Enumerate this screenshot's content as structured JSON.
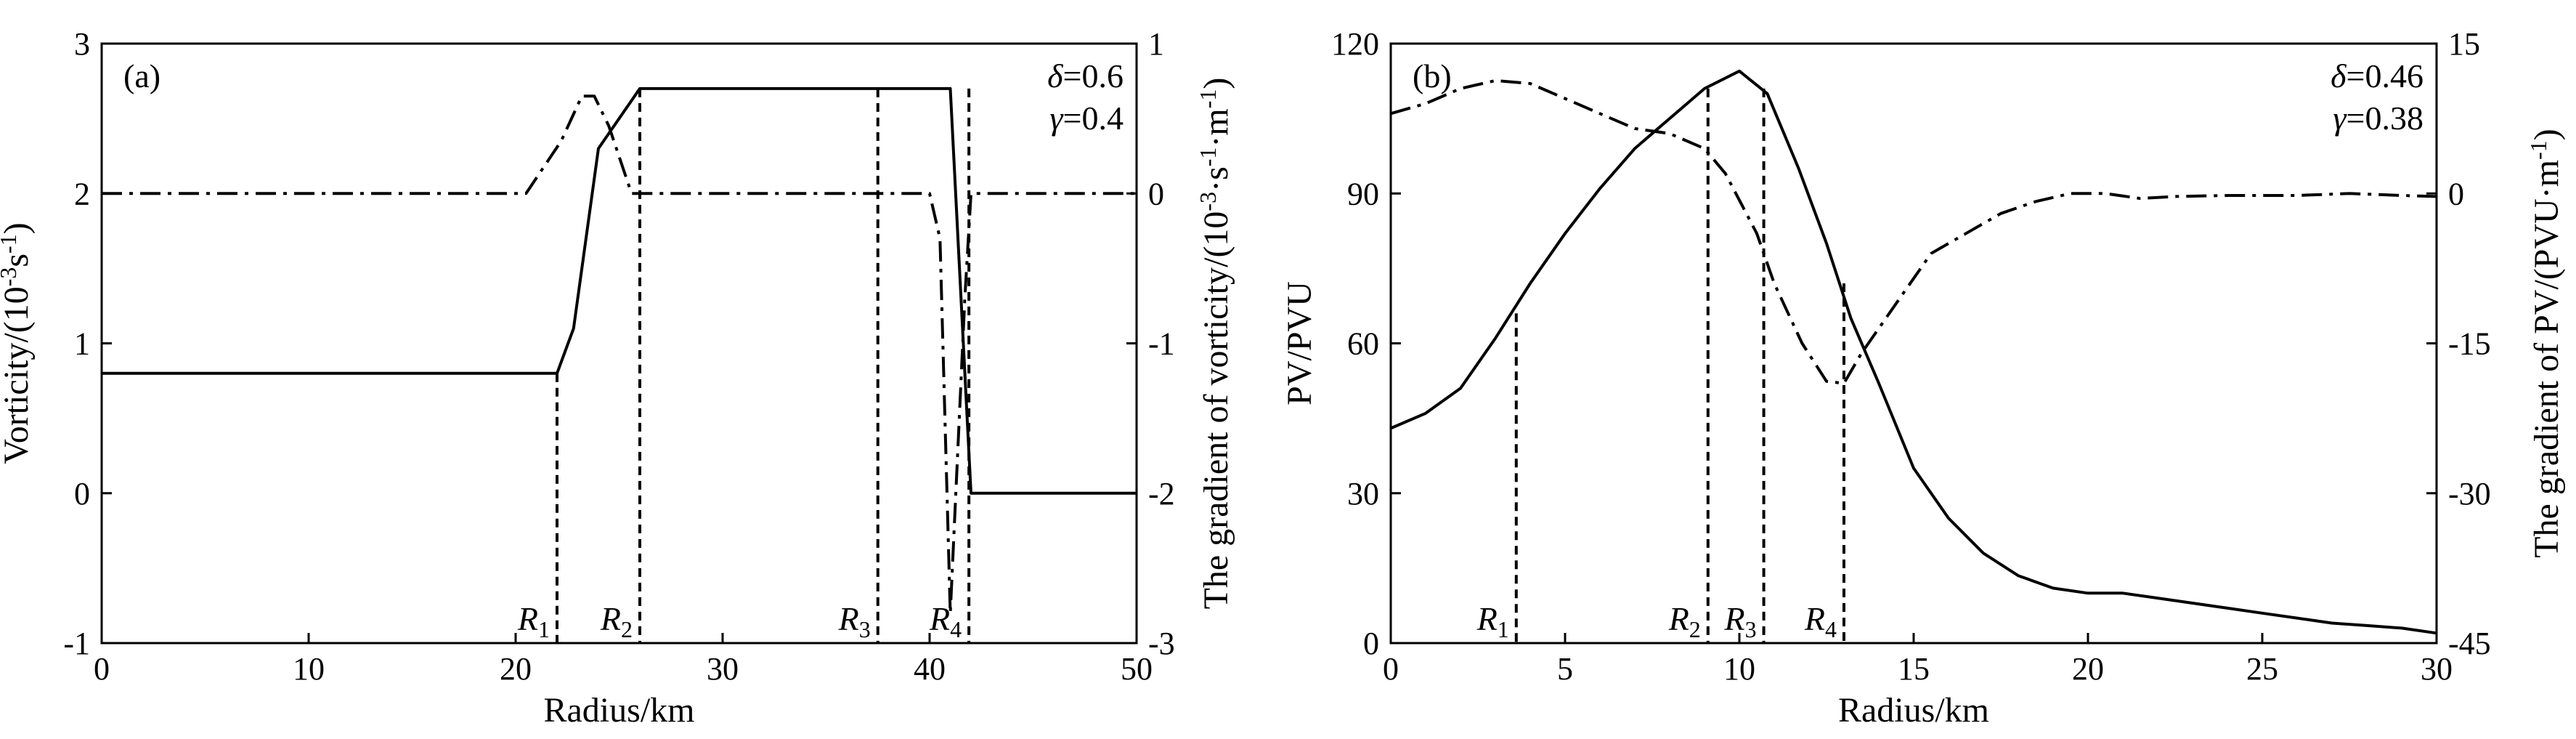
{
  "chart_data": [
    {
      "type": "line",
      "panel_label": "(a)",
      "xlabel": "Radius/km",
      "ylabel_left": {
        "text": "Vorticity/(10",
        "sup1": "-3",
        "text2": "s",
        "sup2": "-1",
        "text3": ")"
      },
      "ylabel_right": {
        "text": "The gradient of vorticity/(10",
        "sup1": "-3",
        "text2": "·s",
        "sup2": "-1",
        "text3": "·m",
        "sup3": "-1",
        "text4": ")"
      },
      "xlim": [
        0,
        50
      ],
      "ylim_left": [
        -1,
        3
      ],
      "ylim_right": [
        -3,
        1
      ],
      "xticks": [
        0,
        10,
        20,
        30,
        40,
        50
      ],
      "yticks_left": [
        -1,
        0,
        1,
        2,
        3
      ],
      "yticks_right": [
        -3,
        -2,
        -1,
        0,
        1
      ],
      "annotations": {
        "delta": "=0.6",
        "gamma": "=0.4",
        "delta_symbol": "δ",
        "gamma_symbol": "γ"
      },
      "series": [
        {
          "style": "solid",
          "axis": "left",
          "points": [
            [
              0,
              0.8
            ],
            [
              22,
              0.8
            ],
            [
              22.8,
              1.1
            ],
            [
              24,
              2.3
            ],
            [
              26,
              2.7
            ],
            [
              41,
              2.7
            ],
            [
              42,
              0
            ],
            [
              50,
              0
            ]
          ]
        },
        {
          "style": "dashdot",
          "axis": "right",
          "points": [
            [
              0,
              0
            ],
            [
              20.5,
              0
            ],
            [
              22.2,
              0.35
            ],
            [
              23.2,
              0.65
            ],
            [
              23.8,
              0.65
            ],
            [
              24.5,
              0.45
            ],
            [
              25.6,
              0
            ],
            [
              40,
              0
            ],
            [
              40.5,
              -0.3
            ],
            [
              41,
              -2.8
            ],
            [
              41.7,
              -0.7
            ],
            [
              42,
              0
            ],
            [
              50,
              0
            ]
          ]
        }
      ],
      "markers": [
        {
          "x": 22,
          "y_top": 0.8,
          "label": "R",
          "sub": "1"
        },
        {
          "x": 26,
          "y_top": 2.7,
          "label": "R",
          "sub": "2"
        },
        {
          "x": 37.5,
          "y_top": 2.7,
          "label": "R",
          "sub": "3"
        },
        {
          "x": 41.9,
          "y_top": 2.7,
          "label": "R",
          "sub": "4"
        }
      ]
    },
    {
      "type": "line",
      "panel_label": "(b)",
      "xlabel": "Radius/km",
      "ylabel_left": {
        "text": "PV/PVU"
      },
      "ylabel_right": {
        "text": "The gradient of PV/(PVU·m",
        "sup1": "-1",
        "text2": ")"
      },
      "xlim": [
        0,
        30
      ],
      "ylim_left": [
        0,
        120
      ],
      "ylim_right": [
        -45,
        15
      ],
      "xticks": [
        0,
        5,
        10,
        15,
        20,
        25,
        30
      ],
      "yticks_left": [
        0,
        30,
        60,
        90,
        120
      ],
      "yticks_right": [
        -45,
        -30,
        -15,
        0,
        15
      ],
      "annotations": {
        "delta": "=0.46",
        "gamma": "=0.38",
        "delta_symbol": "δ",
        "gamma_symbol": "γ"
      },
      "series": [
        {
          "style": "solid",
          "axis": "left",
          "points": [
            [
              0,
              43
            ],
            [
              1,
              46
            ],
            [
              2,
              51
            ],
            [
              3,
              61
            ],
            [
              4,
              72
            ],
            [
              5,
              82
            ],
            [
              6,
              91
            ],
            [
              7,
              99
            ],
            [
              8,
              105
            ],
            [
              9,
              111
            ],
            [
              10,
              114.5
            ],
            [
              10.8,
              110
            ],
            [
              11.7,
              95
            ],
            [
              12.5,
              80
            ],
            [
              13.2,
              65
            ],
            [
              14,
              52
            ],
            [
              15,
              35
            ],
            [
              16,
              25
            ],
            [
              17,
              18
            ],
            [
              18,
              13.5
            ],
            [
              19,
              11
            ],
            [
              20,
              10
            ],
            [
              21,
              10
            ],
            [
              22,
              9
            ],
            [
              23,
              8
            ],
            [
              24,
              7
            ],
            [
              25,
              6
            ],
            [
              26,
              5
            ],
            [
              27,
              4
            ],
            [
              28,
              3.5
            ],
            [
              29,
              3
            ],
            [
              30,
              2
            ]
          ]
        },
        {
          "style": "dashdot",
          "axis": "right",
          "points": [
            [
              0,
              8
            ],
            [
              1,
              9
            ],
            [
              2,
              10.5
            ],
            [
              3,
              11.3
            ],
            [
              4,
              11
            ],
            [
              5,
              9.5
            ],
            [
              6,
              8
            ],
            [
              7,
              6.5
            ],
            [
              8,
              6
            ],
            [
              9,
              4.5
            ],
            [
              9.6,
              2
            ],
            [
              10.5,
              -4
            ],
            [
              11,
              -9
            ],
            [
              11.8,
              -15
            ],
            [
              12.5,
              -18.8
            ],
            [
              13,
              -19
            ],
            [
              13.5,
              -16
            ],
            [
              14.5,
              -11
            ],
            [
              15.5,
              -6
            ],
            [
              16.5,
              -4
            ],
            [
              17.5,
              -2
            ],
            [
              18.5,
              -0.8
            ],
            [
              19.5,
              0
            ],
            [
              20.5,
              0
            ],
            [
              21.5,
              -0.5
            ],
            [
              22.5,
              -0.3
            ],
            [
              24,
              -0.2
            ],
            [
              26,
              -0.2
            ],
            [
              27.5,
              0
            ],
            [
              29,
              -0.2
            ],
            [
              30,
              -0.3
            ]
          ]
        }
      ],
      "markers": [
        {
          "x": 3.6,
          "y_top": 66,
          "label": "R",
          "sub": "1"
        },
        {
          "x": 9.1,
          "y_top": 111,
          "label": "R",
          "sub": "2"
        },
        {
          "x": 10.7,
          "y_top": 111,
          "label": "R",
          "sub": "3"
        },
        {
          "x": 13,
          "y_top": 72,
          "label": "R",
          "sub": "4"
        }
      ]
    }
  ]
}
